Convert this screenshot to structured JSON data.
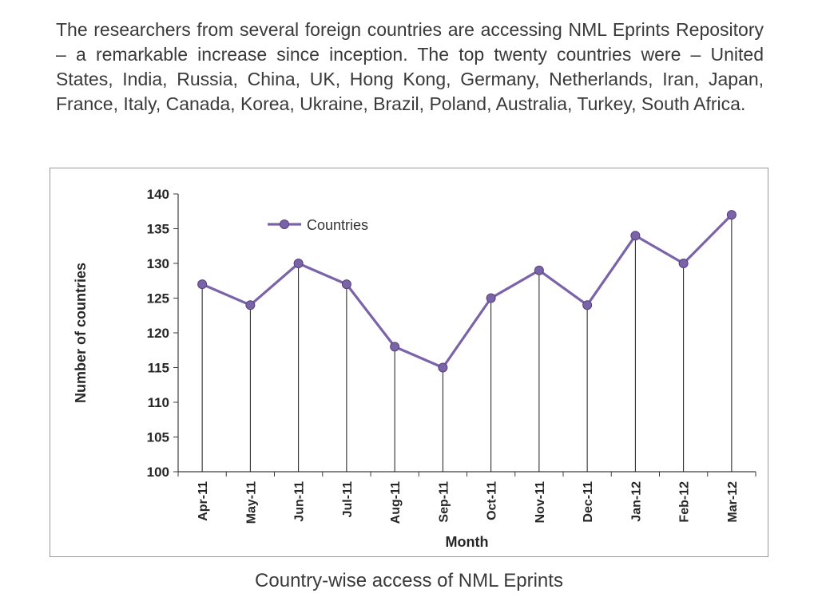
{
  "slide": {
    "paragraph": "The researchers from several foreign countries are accessing NML Eprints Repository – a remarkable increase since inception. The top twenty countries were – United States, India, Russia, China, UK, Hong Kong, Germany, Netherlands, Iran, Japan, France, Italy, Canada, Korea, Ukraine, Brazil, Poland, Australia, Turkey, South Africa.",
    "caption": "Country-wise access of NML Eprints"
  },
  "chart_data": {
    "type": "line",
    "title": "",
    "xlabel": "Month",
    "ylabel": "Number of countries",
    "categories": [
      "Apr-11",
      "May-11",
      "Jun-11",
      "Jul-11",
      "Aug-11",
      "Sep-11",
      "Oct-11",
      "Nov-11",
      "Dec-11",
      "Jan-12",
      "Feb-12",
      "Mar-12"
    ],
    "series": [
      {
        "name": "Countries",
        "values": [
          127,
          124,
          130,
          127,
          118,
          115,
          125,
          129,
          124,
          134,
          130,
          137
        ]
      }
    ],
    "ylim": [
      100,
      140
    ],
    "y_ticks": [
      100,
      105,
      110,
      115,
      120,
      125,
      130,
      135,
      140
    ],
    "legend_position": "top-left-inside",
    "grid": false,
    "drop_lines": true,
    "colors": {
      "line": "#7a63a8",
      "marker_stroke": "#56427a",
      "axis": "#3c3c3c",
      "drop_line": "#1a1a1a"
    }
  }
}
